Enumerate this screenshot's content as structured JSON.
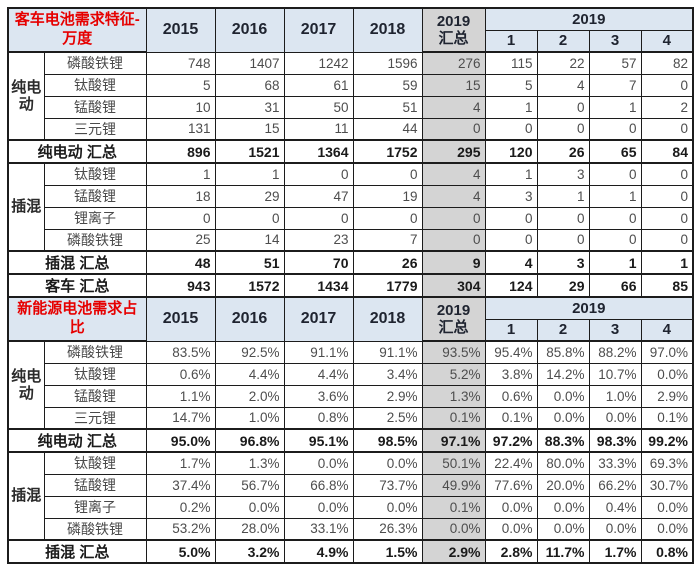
{
  "colors": {
    "header_bg": "#dce6f1",
    "total_column_bg": "#d4d4d4",
    "section_title_red": "#e60000",
    "border": "#1c1c1c",
    "number_text": "#4d4d4d"
  },
  "chart_data": {
    "type": "table",
    "header": {
      "years": [
        "2015",
        "2016",
        "2017",
        "2018"
      ],
      "total_column_lines": [
        "2019",
        "汇总"
      ],
      "quarter_group": "2019",
      "quarters": [
        "1",
        "2",
        "3",
        "4"
      ]
    },
    "sections": [
      {
        "title": "客车电池需求特征-万度",
        "groups": [
          {
            "label": "纯电动",
            "rows": [
              {
                "type": "磷酸铁锂",
                "values": [
                  "748",
                  "1407",
                  "1242",
                  "1596",
                  "276",
                  "115",
                  "22",
                  "57",
                  "82"
                ]
              },
              {
                "type": "钛酸锂",
                "values": [
                  "5",
                  "68",
                  "61",
                  "59",
                  "15",
                  "5",
                  "4",
                  "7",
                  "0"
                ]
              },
              {
                "type": "锰酸锂",
                "values": [
                  "10",
                  "31",
                  "50",
                  "51",
                  "4",
                  "1",
                  "0",
                  "1",
                  "2"
                ]
              },
              {
                "type": "三元锂",
                "values": [
                  "131",
                  "15",
                  "11",
                  "44",
                  "0",
                  "0",
                  "0",
                  "0",
                  "0"
                ]
              }
            ],
            "total": {
              "label": "纯电动 汇总",
              "values": [
                "896",
                "1521",
                "1364",
                "1752",
                "295",
                "120",
                "26",
                "65",
                "84"
              ]
            }
          },
          {
            "label": "插混",
            "rows": [
              {
                "type": "钛酸锂",
                "values": [
                  "1",
                  "1",
                  "0",
                  "0",
                  "4",
                  "1",
                  "3",
                  "0",
                  "0"
                ]
              },
              {
                "type": "锰酸锂",
                "values": [
                  "18",
                  "29",
                  "47",
                  "19",
                  "4",
                  "3",
                  "1",
                  "1",
                  "0"
                ]
              },
              {
                "type": "锂离子",
                "values": [
                  "0",
                  "0",
                  "0",
                  "0",
                  "0",
                  "0",
                  "0",
                  "0",
                  "0"
                ]
              },
              {
                "type": "磷酸铁锂",
                "values": [
                  "25",
                  "14",
                  "23",
                  "7",
                  "0",
                  "0",
                  "0",
                  "0",
                  "0"
                ]
              }
            ],
            "total": {
              "label": "插混 汇总",
              "values": [
                "48",
                "51",
                "70",
                "26",
                "9",
                "4",
                "3",
                "1",
                "1"
              ]
            }
          }
        ],
        "grand_total": {
          "label": "客车 汇总",
          "values": [
            "943",
            "1572",
            "1434",
            "1779",
            "304",
            "124",
            "29",
            "66",
            "85"
          ]
        }
      },
      {
        "title": "新能源电池需求占比",
        "groups": [
          {
            "label": "纯电动",
            "rows": [
              {
                "type": "磷酸铁锂",
                "values": [
                  "83.5%",
                  "92.5%",
                  "91.1%",
                  "91.1%",
                  "93.5%",
                  "95.4%",
                  "85.8%",
                  "88.2%",
                  "97.0%"
                ]
              },
              {
                "type": "钛酸锂",
                "values": [
                  "0.6%",
                  "4.4%",
                  "4.4%",
                  "3.4%",
                  "5.2%",
                  "3.8%",
                  "14.2%",
                  "10.7%",
                  "0.0%"
                ]
              },
              {
                "type": "锰酸锂",
                "values": [
                  "1.1%",
                  "2.0%",
                  "3.6%",
                  "2.9%",
                  "1.3%",
                  "0.6%",
                  "0.0%",
                  "1.0%",
                  "2.9%"
                ]
              },
              {
                "type": "三元锂",
                "values": [
                  "14.7%",
                  "1.0%",
                  "0.8%",
                  "2.5%",
                  "0.1%",
                  "0.1%",
                  "0.0%",
                  "0.0%",
                  "0.1%"
                ]
              }
            ],
            "total": {
              "label": "纯电动 汇总",
              "values": [
                "95.0%",
                "96.8%",
                "95.1%",
                "98.5%",
                "97.1%",
                "97.2%",
                "88.3%",
                "98.3%",
                "99.2%"
              ]
            }
          },
          {
            "label": "插混",
            "rows": [
              {
                "type": "钛酸锂",
                "values": [
                  "1.7%",
                  "1.3%",
                  "0.0%",
                  "0.0%",
                  "50.1%",
                  "22.4%",
                  "80.0%",
                  "33.3%",
                  "69.3%"
                ]
              },
              {
                "type": "锰酸锂",
                "values": [
                  "37.4%",
                  "56.7%",
                  "66.8%",
                  "73.7%",
                  "49.9%",
                  "77.6%",
                  "20.0%",
                  "66.2%",
                  "30.7%"
                ]
              },
              {
                "type": "锂离子",
                "values": [
                  "0.2%",
                  "0.0%",
                  "0.0%",
                  "0.0%",
                  "0.1%",
                  "0.0%",
                  "0.0%",
                  "0.4%",
                  "0.0%"
                ]
              },
              {
                "type": "磷酸铁锂",
                "values": [
                  "53.2%",
                  "28.0%",
                  "33.1%",
                  "26.3%",
                  "0.0%",
                  "0.0%",
                  "0.0%",
                  "0.0%",
                  "0.0%"
                ]
              }
            ],
            "total": {
              "label": "插混 汇总",
              "values": [
                "5.0%",
                "3.2%",
                "4.9%",
                "1.5%",
                "2.9%",
                "2.8%",
                "11.7%",
                "1.7%",
                "0.8%"
              ]
            }
          }
        ],
        "grand_total": null
      }
    ]
  }
}
